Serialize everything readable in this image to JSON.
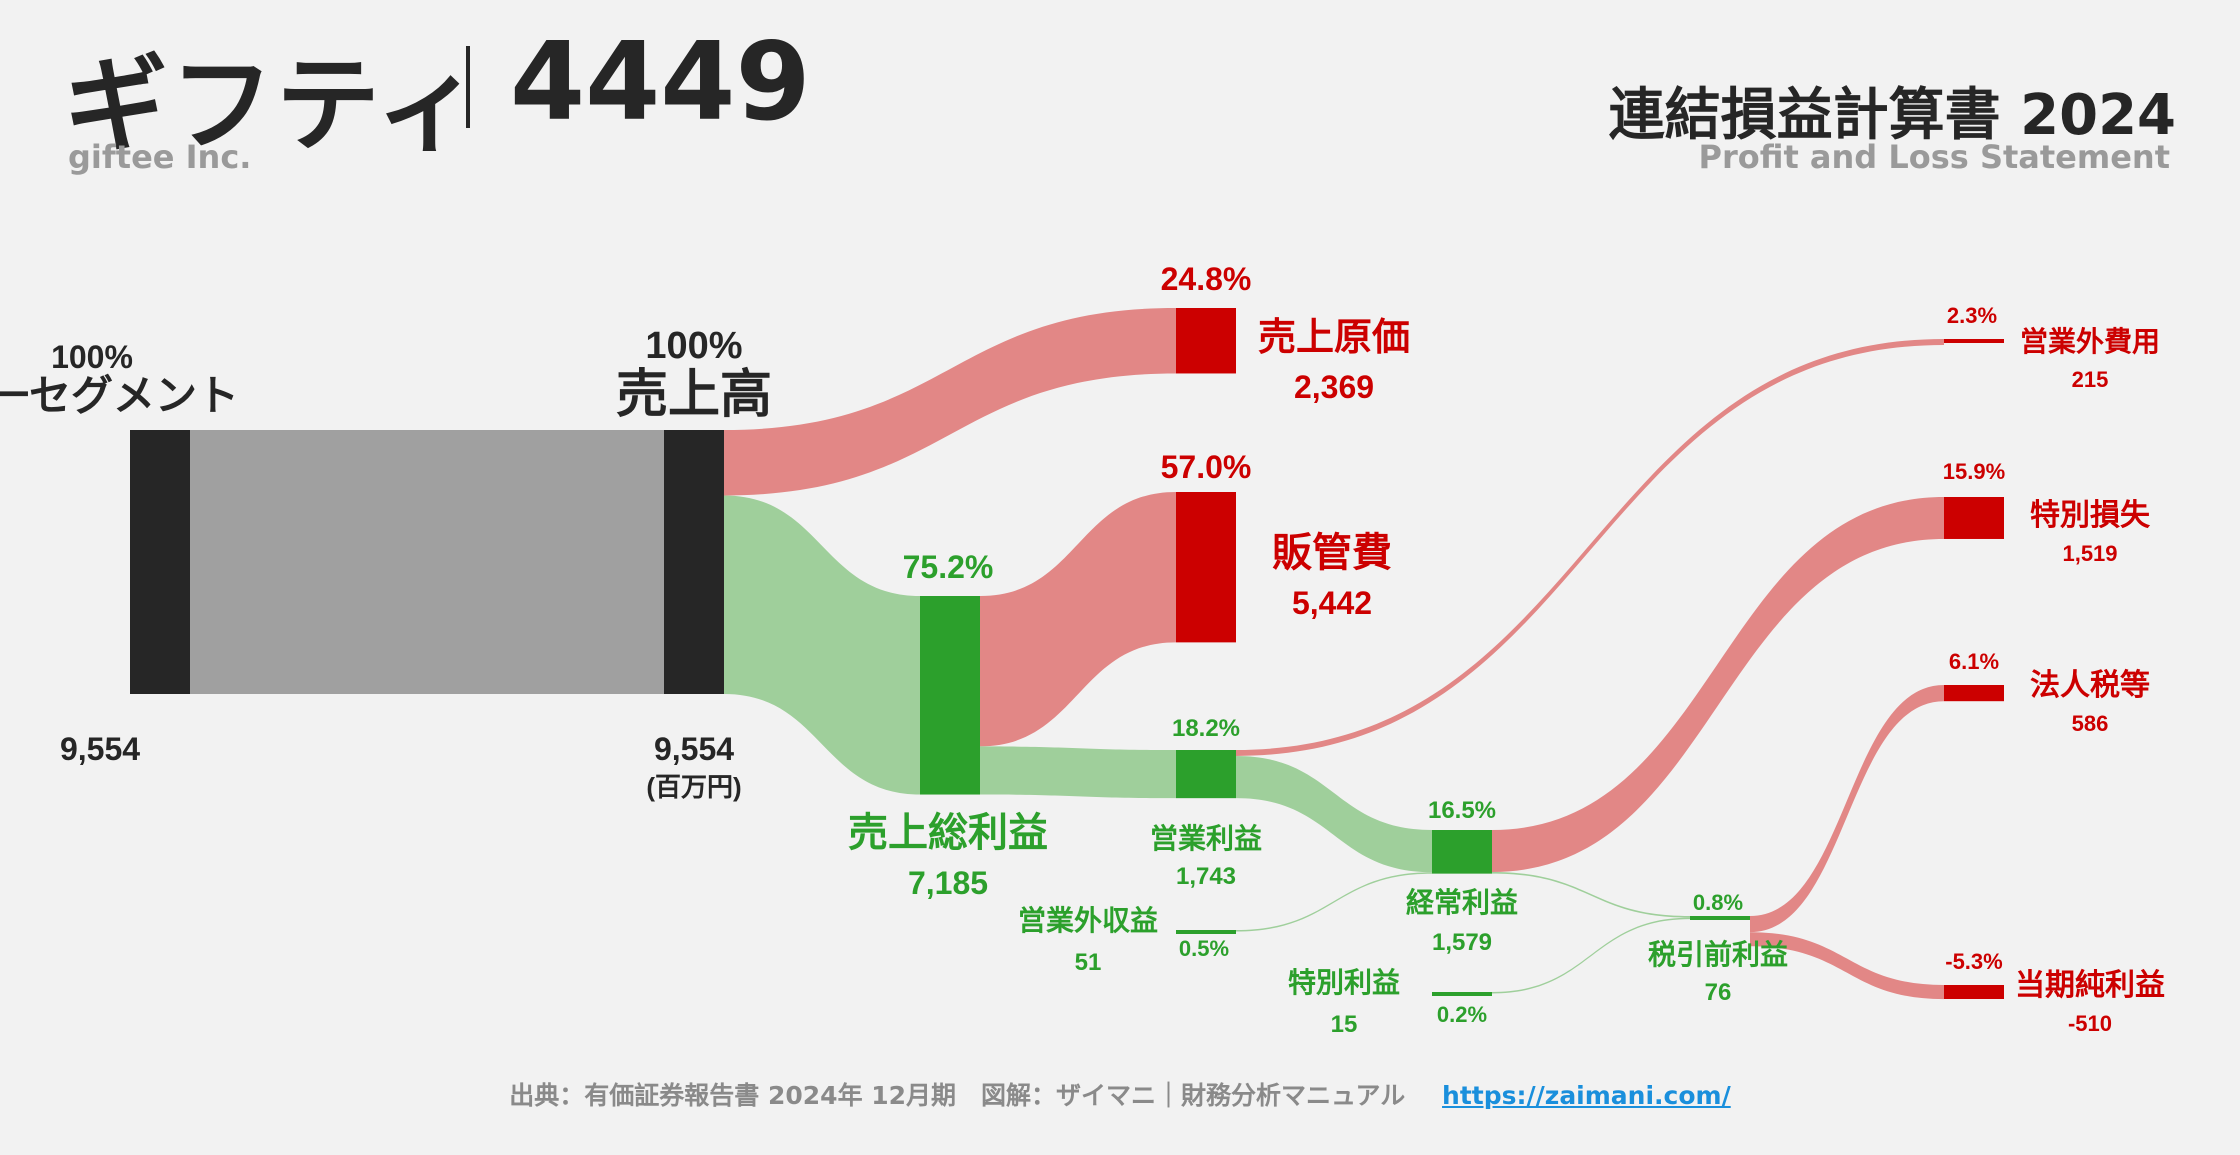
{
  "header": {
    "company_name": "ギフティ",
    "ticker": "4449",
    "company_name_en": "giftee Inc.",
    "statement_title": "連結損益計算書 2024",
    "statement_subtitle": "Profit and Loss Statement"
  },
  "footer": {
    "source": "出典：有価証券報告書 2024年 12月期　図解：ザイマニ｜財務分析マニュアル",
    "url": "https://zaimani.com/"
  },
  "colors": {
    "dark": "#262626",
    "gray_flow": "#a0a0a0",
    "profit": "#2ca02c",
    "profit_flow": "#9fcf9b",
    "cost": "#cc0000",
    "cost_flow": "#e28786",
    "text_dark": "#262626"
  },
  "chart_data": {
    "type": "sankey",
    "title": "連結損益計算書 2024",
    "unit": "(百万円)",
    "nodes": [
      {
        "id": "segment",
        "name": "単一セグメント",
        "value": 9554,
        "value_label": "9,554",
        "percent": "100%",
        "kind": "revenue"
      },
      {
        "id": "revenue",
        "name": "売上高",
        "value": 9554,
        "value_label": "9,554",
        "percent": "100%",
        "kind": "revenue"
      },
      {
        "id": "cogs",
        "name": "売上原価",
        "value": 2369,
        "value_label": "2,369",
        "percent": "24.8%",
        "kind": "cost"
      },
      {
        "id": "gross",
        "name": "売上総利益",
        "value": 7185,
        "value_label": "7,185",
        "percent": "75.2%",
        "kind": "profit"
      },
      {
        "id": "sga",
        "name": "販管費",
        "value": 5442,
        "value_label": "5,442",
        "percent": "57.0%",
        "kind": "cost"
      },
      {
        "id": "operating",
        "name": "営業利益",
        "value": 1743,
        "value_label": "1,743",
        "percent": "18.2%",
        "kind": "profit"
      },
      {
        "id": "non_op_income",
        "name": "営業外収益",
        "value": 51,
        "value_label": "51",
        "percent": "0.5%",
        "kind": "profit"
      },
      {
        "id": "non_op_expense",
        "name": "営業外費用",
        "value": 215,
        "value_label": "215",
        "percent": "2.3%",
        "kind": "cost"
      },
      {
        "id": "ordinary",
        "name": "経常利益",
        "value": 1579,
        "value_label": "1,579",
        "percent": "16.5%",
        "kind": "profit"
      },
      {
        "id": "extra_income",
        "name": "特別利益",
        "value": 15,
        "value_label": "15",
        "percent": "0.2%",
        "kind": "profit"
      },
      {
        "id": "extra_loss",
        "name": "特別損失",
        "value": 1519,
        "value_label": "1,519",
        "percent": "15.9%",
        "kind": "cost"
      },
      {
        "id": "pretax",
        "name": "税引前利益",
        "value": 76,
        "value_label": "76",
        "percent": "0.8%",
        "kind": "profit"
      },
      {
        "id": "tax",
        "name": "法人税等",
        "value": 586,
        "value_label": "586",
        "percent": "6.1%",
        "kind": "cost"
      },
      {
        "id": "net",
        "name": "当期純利益",
        "value": -510,
        "value_label": "-510",
        "percent": "-5.3%",
        "kind": "cost"
      }
    ],
    "links": [
      {
        "source": "segment",
        "target": "revenue",
        "value": 9554
      },
      {
        "source": "revenue",
        "target": "cogs",
        "value": 2369
      },
      {
        "source": "revenue",
        "target": "gross",
        "value": 7185
      },
      {
        "source": "gross",
        "target": "sga",
        "value": 5442
      },
      {
        "source": "gross",
        "target": "operating",
        "value": 1743
      },
      {
        "source": "operating",
        "target": "non_op_expense",
        "value": 215
      },
      {
        "source": "operating",
        "target": "ordinary",
        "value": 1528
      },
      {
        "source": "non_op_income",
        "target": "ordinary",
        "value": 51
      },
      {
        "source": "ordinary",
        "target": "extra_loss",
        "value": 1519
      },
      {
        "source": "ordinary",
        "target": "pretax",
        "value": 60
      },
      {
        "source": "extra_income",
        "target": "pretax",
        "value": 15
      },
      {
        "source": "pretax",
        "target": "tax",
        "value": 586
      },
      {
        "source": "pretax",
        "target": "net",
        "value": 510
      }
    ]
  }
}
